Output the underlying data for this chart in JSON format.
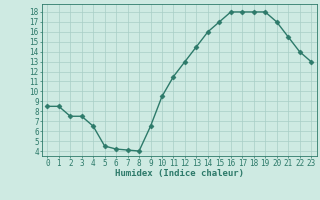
{
  "x": [
    0,
    1,
    2,
    3,
    4,
    5,
    6,
    7,
    8,
    9,
    10,
    11,
    12,
    13,
    14,
    15,
    16,
    17,
    18,
    19,
    20,
    21,
    22,
    23
  ],
  "y": [
    8.5,
    8.5,
    7.5,
    7.5,
    6.5,
    4.5,
    4.2,
    4.1,
    4.0,
    6.5,
    9.5,
    11.5,
    13.0,
    14.5,
    16.0,
    17.0,
    18.0,
    18.0,
    18.0,
    18.0,
    17.0,
    15.5,
    14.0,
    13.0
  ],
  "line_color": "#2d7a6a",
  "marker": "D",
  "marker_size": 2.5,
  "bg_color": "#ceeae2",
  "grid_color": "#a8cec6",
  "xlabel": "Humidex (Indice chaleur)",
  "xlim": [
    -0.5,
    23.5
  ],
  "ylim": [
    3.5,
    18.8
  ],
  "yticks": [
    4,
    5,
    6,
    7,
    8,
    9,
    10,
    11,
    12,
    13,
    14,
    15,
    16,
    17,
    18
  ],
  "xticks": [
    0,
    1,
    2,
    3,
    4,
    5,
    6,
    7,
    8,
    9,
    10,
    11,
    12,
    13,
    14,
    15,
    16,
    17,
    18,
    19,
    20,
    21,
    22,
    23
  ],
  "tick_fontsize": 5.5,
  "xlabel_fontsize": 6.5,
  "spine_color": "#2d7a6a",
  "line_width": 1.0
}
